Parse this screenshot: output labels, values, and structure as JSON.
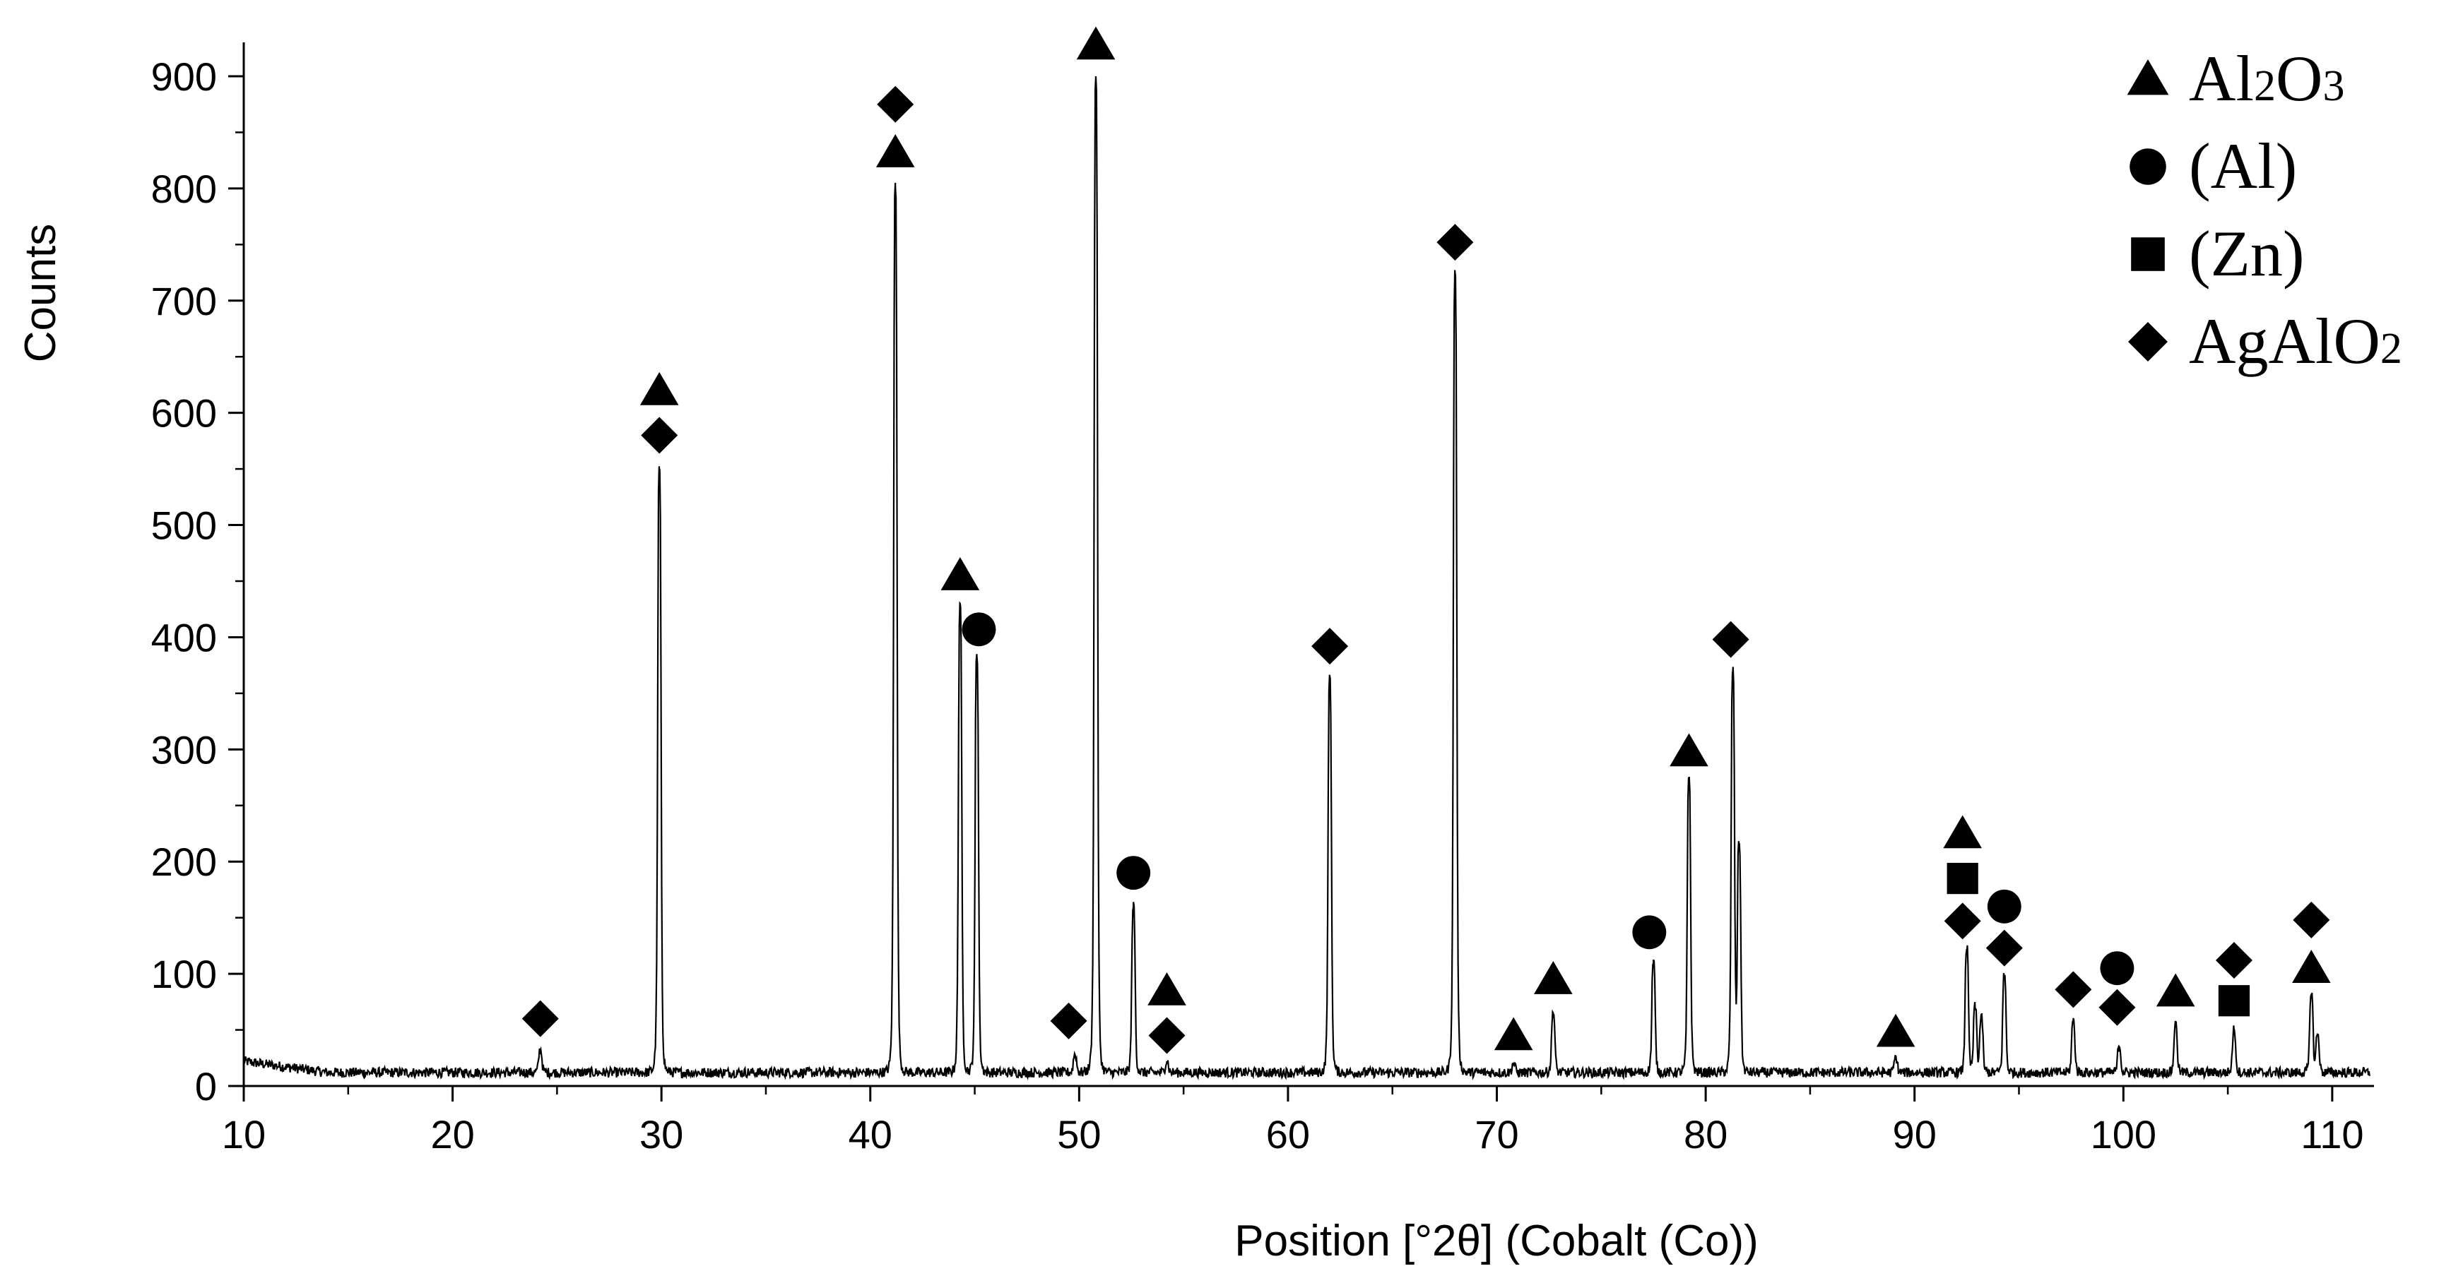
{
  "chart_data": {
    "type": "line",
    "title": "",
    "xlabel": "Position [°2θ] (Cobalt (Co))",
    "ylabel": "Counts",
    "xlim": [
      10,
      112
    ],
    "ylim": [
      0,
      950
    ],
    "xticks": [
      10,
      20,
      30,
      40,
      50,
      60,
      70,
      80,
      90,
      100,
      110
    ],
    "yticks": [
      0,
      100,
      200,
      300,
      400,
      500,
      600,
      700,
      800,
      900
    ],
    "grid": false,
    "line_color": "#000000",
    "marker_color": "#000000",
    "background": 12,
    "peaks": [
      {
        "x": 24.2,
        "y": 32
      },
      {
        "x": 29.9,
        "y": 550
      },
      {
        "x": 41.2,
        "y": 805
      },
      {
        "x": 44.3,
        "y": 430
      },
      {
        "x": 45.1,
        "y": 385
      },
      {
        "x": 49.8,
        "y": 28
      },
      {
        "x": 50.8,
        "y": 900
      },
      {
        "x": 52.6,
        "y": 160
      },
      {
        "x": 54.2,
        "y": 22
      },
      {
        "x": 62.0,
        "y": 365
      },
      {
        "x": 68.0,
        "y": 725
      },
      {
        "x": 70.8,
        "y": 20
      },
      {
        "x": 72.7,
        "y": 65
      },
      {
        "x": 77.5,
        "y": 110
      },
      {
        "x": 79.2,
        "y": 275
      },
      {
        "x": 81.3,
        "y": 370
      },
      {
        "x": 81.6,
        "y": 215
      },
      {
        "x": 89.1,
        "y": 25
      },
      {
        "x": 92.5,
        "y": 122
      },
      {
        "x": 92.9,
        "y": 70
      },
      {
        "x": 93.2,
        "y": 60
      },
      {
        "x": 94.3,
        "y": 98
      },
      {
        "x": 97.6,
        "y": 58
      },
      {
        "x": 99.8,
        "y": 35
      },
      {
        "x": 102.5,
        "y": 55
      },
      {
        "x": 105.3,
        "y": 50
      },
      {
        "x": 109.0,
        "y": 82
      },
      {
        "x": 109.3,
        "y": 45
      }
    ],
    "legend": {
      "placement": "top-right",
      "entries": [
        {
          "marker": "triangle",
          "label": "Al",
          "sub1": "2",
          "mid": "O",
          "sub2": "3"
        },
        {
          "marker": "circle",
          "label": "(Al)",
          "sub1": "",
          "mid": "",
          "sub2": ""
        },
        {
          "marker": "square",
          "label": "(Zn)",
          "sub1": "",
          "mid": "",
          "sub2": ""
        },
        {
          "marker": "diamond",
          "label": "AgAlO",
          "sub1": "2",
          "mid": "",
          "sub2": ""
        }
      ]
    },
    "markers": [
      {
        "type": "diamond",
        "x": 24.2,
        "y": 60
      },
      {
        "type": "triangle",
        "x": 29.9,
        "y": 620
      },
      {
        "type": "diamond",
        "x": 29.9,
        "y": 580
      },
      {
        "type": "diamond",
        "x": 41.2,
        "y": 875
      },
      {
        "type": "triangle",
        "x": 41.2,
        "y": 832
      },
      {
        "type": "triangle",
        "x": 44.3,
        "y": 455
      },
      {
        "type": "circle",
        "x": 45.2,
        "y": 407
      },
      {
        "type": "diamond",
        "x": 49.5,
        "y": 58
      },
      {
        "type": "triangle",
        "x": 50.8,
        "y": 928
      },
      {
        "type": "circle",
        "x": 52.6,
        "y": 190
      },
      {
        "type": "triangle",
        "x": 54.2,
        "y": 85
      },
      {
        "type": "diamond",
        "x": 54.2,
        "y": 45
      },
      {
        "type": "diamond",
        "x": 62.0,
        "y": 392
      },
      {
        "type": "diamond",
        "x": 68.0,
        "y": 752
      },
      {
        "type": "triangle",
        "x": 70.8,
        "y": 45
      },
      {
        "type": "triangle",
        "x": 72.7,
        "y": 95
      },
      {
        "type": "circle",
        "x": 77.3,
        "y": 137
      },
      {
        "type": "triangle",
        "x": 79.2,
        "y": 298
      },
      {
        "type": "diamond",
        "x": 81.2,
        "y": 398
      },
      {
        "type": "triangle",
        "x": 89.1,
        "y": 48
      },
      {
        "type": "triangle",
        "x": 92.3,
        "y": 225
      },
      {
        "type": "square",
        "x": 92.3,
        "y": 185
      },
      {
        "type": "diamond",
        "x": 92.3,
        "y": 147
      },
      {
        "type": "circle",
        "x": 94.3,
        "y": 160
      },
      {
        "type": "diamond",
        "x": 94.3,
        "y": 123
      },
      {
        "type": "diamond",
        "x": 97.6,
        "y": 86
      },
      {
        "type": "circle",
        "x": 99.7,
        "y": 105
      },
      {
        "type": "diamond",
        "x": 99.7,
        "y": 70
      },
      {
        "type": "triangle",
        "x": 102.5,
        "y": 84
      },
      {
        "type": "diamond",
        "x": 105.3,
        "y": 112
      },
      {
        "type": "square",
        "x": 105.3,
        "y": 76
      },
      {
        "type": "diamond",
        "x": 109.0,
        "y": 148
      },
      {
        "type": "triangle",
        "x": 109.0,
        "y": 105
      }
    ]
  }
}
